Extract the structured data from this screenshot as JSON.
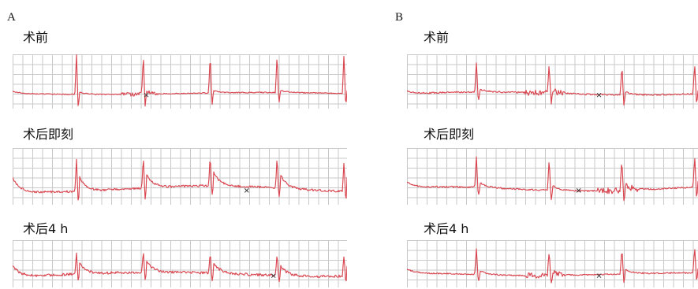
{
  "panels": [
    {
      "letter": "A",
      "strips": [
        {
          "label": "术前",
          "trace": {
            "beats": 5,
            "spikeHeight": 0.82,
            "tWave": 0.05,
            "noise": 0.02,
            "drift": 0.02,
            "noiseBurst": 1,
            "markerAt": 0.4
          }
        },
        {
          "label": "术后即刻",
          "trace": {
            "beats": 5,
            "spikeHeight": 0.62,
            "tWave": 0.28,
            "noise": 0.04,
            "drift": 0.06,
            "noiseBurst": -1,
            "markerAt": 0.7
          }
        },
        {
          "label": "术后4 h",
          "trace": {
            "beats": 5,
            "spikeHeight": 0.52,
            "tWave": 0.26,
            "noise": 0.06,
            "drift": 0.05,
            "noiseBurst": -1,
            "markerAt": 0.78
          }
        }
      ]
    },
    {
      "letter": "B",
      "strips": [
        {
          "label": "术前",
          "trace": {
            "beats": 4,
            "spikeHeight": 0.62,
            "tWave": 0.06,
            "noise": 0.03,
            "drift": 0.03,
            "noiseBurst": 1,
            "markerAt": 0.66
          }
        },
        {
          "label": "术后即刻",
          "trace": {
            "beats": 4,
            "spikeHeight": 0.62,
            "tWave": 0.1,
            "noise": 0.03,
            "drift": 0.04,
            "noiseBurst": 2,
            "markerAt": 0.59
          }
        },
        {
          "label": "术后4 h",
          "trace": {
            "beats": 4,
            "spikeHeight": 0.62,
            "tWave": 0.1,
            "noise": 0.03,
            "drift": 0.03,
            "noiseBurst": 1,
            "markerAt": 0.66
          }
        }
      ]
    }
  ],
  "colors": {
    "trace": "#d9454f",
    "grid": "#c9c9c9",
    "marker": "#3c3c3c"
  }
}
